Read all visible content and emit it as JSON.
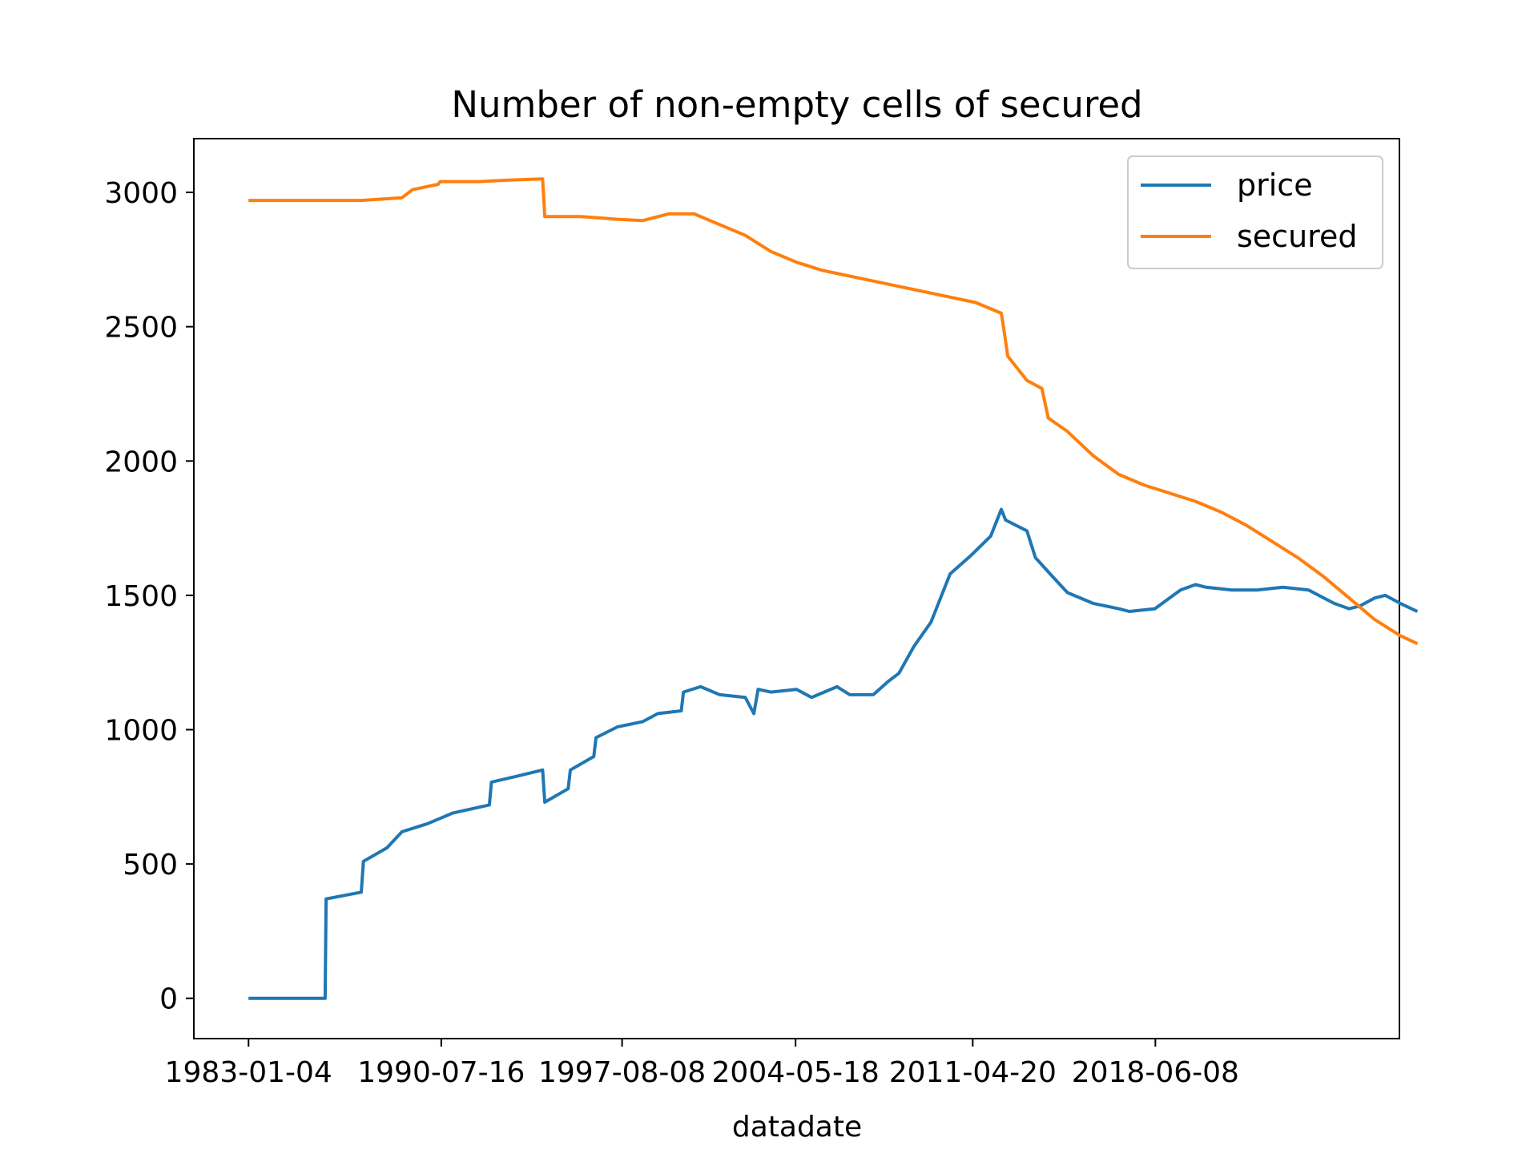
{
  "chart_data": {
    "type": "line",
    "title": "Number of non-empty cells of secured",
    "xlabel": "datadate",
    "ylabel": "",
    "x_ticks": [
      "1983-01-04",
      "1990-07-16",
      "1997-08-08",
      "2004-05-18",
      "2011-04-20",
      "2018-06-08"
    ],
    "y_ticks": [
      0,
      500,
      1000,
      1500,
      2000,
      2500,
      3000
    ],
    "xlim": [
      "1980-11-15",
      "2027-12-20"
    ],
    "ylim": [
      -150,
      3200
    ],
    "grid": false,
    "legend_position": "top-right",
    "colors": {
      "price": "#1f77b4",
      "secured": "#ff7f0e"
    },
    "series": [
      {
        "name": "price",
        "points": [
          [
            "1983-01-04",
            0
          ],
          [
            "1986-01-01",
            0
          ],
          [
            "1986-01-15",
            370
          ],
          [
            "1987-06-01",
            395
          ],
          [
            "1987-07-01",
            510
          ],
          [
            "1988-06-01",
            560
          ],
          [
            "1989-01-01",
            620
          ],
          [
            "1990-01-01",
            650
          ],
          [
            "1991-01-01",
            690
          ],
          [
            "1992-06-01",
            720
          ],
          [
            "1992-07-01",
            805
          ],
          [
            "1993-06-01",
            825
          ],
          [
            "1994-07-01",
            850
          ],
          [
            "1994-08-01",
            730
          ],
          [
            "1995-07-01",
            780
          ],
          [
            "1995-08-01",
            850
          ],
          [
            "1996-07-01",
            900
          ],
          [
            "1996-08-01",
            970
          ],
          [
            "1997-06-01",
            1010
          ],
          [
            "1998-06-01",
            1030
          ],
          [
            "1999-01-01",
            1060
          ],
          [
            "1999-12-01",
            1070
          ],
          [
            "2000-01-01",
            1140
          ],
          [
            "2000-09-01",
            1160
          ],
          [
            "2001-06-01",
            1130
          ],
          [
            "2002-06-01",
            1120
          ],
          [
            "2002-10-01",
            1060
          ],
          [
            "2002-12-01",
            1150
          ],
          [
            "2003-06-01",
            1140
          ],
          [
            "2004-06-01",
            1150
          ],
          [
            "2005-01-01",
            1120
          ],
          [
            "2006-01-01",
            1160
          ],
          [
            "2006-07-01",
            1130
          ],
          [
            "2007-06-01",
            1130
          ],
          [
            "2008-01-01",
            1180
          ],
          [
            "2008-06-01",
            1210
          ],
          [
            "2009-01-01",
            1310
          ],
          [
            "2009-09-01",
            1400
          ],
          [
            "2010-06-01",
            1580
          ],
          [
            "2011-04-01",
            1650
          ],
          [
            "2012-01-01",
            1720
          ],
          [
            "2012-06-01",
            1820
          ],
          [
            "2012-08-01",
            1780
          ],
          [
            "2013-06-01",
            1740
          ],
          [
            "2013-10-01",
            1640
          ],
          [
            "2014-06-01",
            1570
          ],
          [
            "2015-01-01",
            1510
          ],
          [
            "2016-01-01",
            1470
          ],
          [
            "2017-01-01",
            1450
          ],
          [
            "2017-06-01",
            1440
          ],
          [
            "2018-06-01",
            1450
          ],
          [
            "2019-06-01",
            1520
          ],
          [
            "2020-01-01",
            1540
          ],
          [
            "2020-06-01",
            1530
          ],
          [
            "2021-06-01",
            1520
          ],
          [
            "2022-06-01",
            1520
          ],
          [
            "2023-06-01",
            1530
          ],
          [
            "2024-06-01",
            1520
          ],
          [
            "2025-06-01",
            1470
          ],
          [
            "2026-01-01",
            1450
          ],
          [
            "2026-06-01",
            1460
          ],
          [
            "2027-01-01",
            1490
          ],
          [
            "2027-06-01",
            1500
          ],
          [
            "2028-01-01",
            1470
          ],
          [
            "2028-09-01",
            1440
          ]
        ]
      },
      {
        "name": "secured",
        "points": [
          [
            "1983-01-04",
            2970
          ],
          [
            "1987-06-01",
            2970
          ],
          [
            "1989-01-01",
            2980
          ],
          [
            "1989-06-01",
            3010
          ],
          [
            "1990-06-01",
            3030
          ],
          [
            "1990-07-01",
            3040
          ],
          [
            "1992-01-01",
            3040
          ],
          [
            "1993-01-01",
            3045
          ],
          [
            "1994-07-01",
            3050
          ],
          [
            "1994-08-01",
            2910
          ],
          [
            "1996-01-01",
            2910
          ],
          [
            "1997-06-01",
            2900
          ],
          [
            "1998-06-01",
            2895
          ],
          [
            "1999-06-01",
            2920
          ],
          [
            "2000-06-01",
            2920
          ],
          [
            "2001-06-01",
            2880
          ],
          [
            "2002-06-01",
            2840
          ],
          [
            "2003-06-01",
            2780
          ],
          [
            "2004-06-01",
            2740
          ],
          [
            "2005-06-01",
            2710
          ],
          [
            "2006-06-01",
            2690
          ],
          [
            "2007-06-01",
            2670
          ],
          [
            "2008-06-01",
            2650
          ],
          [
            "2009-06-01",
            2630
          ],
          [
            "2010-06-01",
            2610
          ],
          [
            "2011-06-01",
            2590
          ],
          [
            "2012-06-01",
            2550
          ],
          [
            "2012-07-01",
            2500
          ],
          [
            "2012-09-01",
            2390
          ],
          [
            "2013-06-01",
            2300
          ],
          [
            "2014-01-01",
            2270
          ],
          [
            "2014-04-01",
            2160
          ],
          [
            "2015-01-01",
            2110
          ],
          [
            "2016-01-01",
            2020
          ],
          [
            "2017-01-01",
            1950
          ],
          [
            "2018-01-01",
            1910
          ],
          [
            "2019-01-01",
            1880
          ],
          [
            "2020-01-01",
            1850
          ],
          [
            "2021-01-01",
            1810
          ],
          [
            "2022-01-01",
            1760
          ],
          [
            "2023-01-01",
            1700
          ],
          [
            "2024-01-01",
            1640
          ],
          [
            "2025-01-01",
            1570
          ],
          [
            "2026-01-01",
            1490
          ],
          [
            "2027-01-01",
            1410
          ],
          [
            "2028-01-01",
            1350
          ],
          [
            "2028-09-01",
            1320
          ]
        ]
      }
    ]
  }
}
